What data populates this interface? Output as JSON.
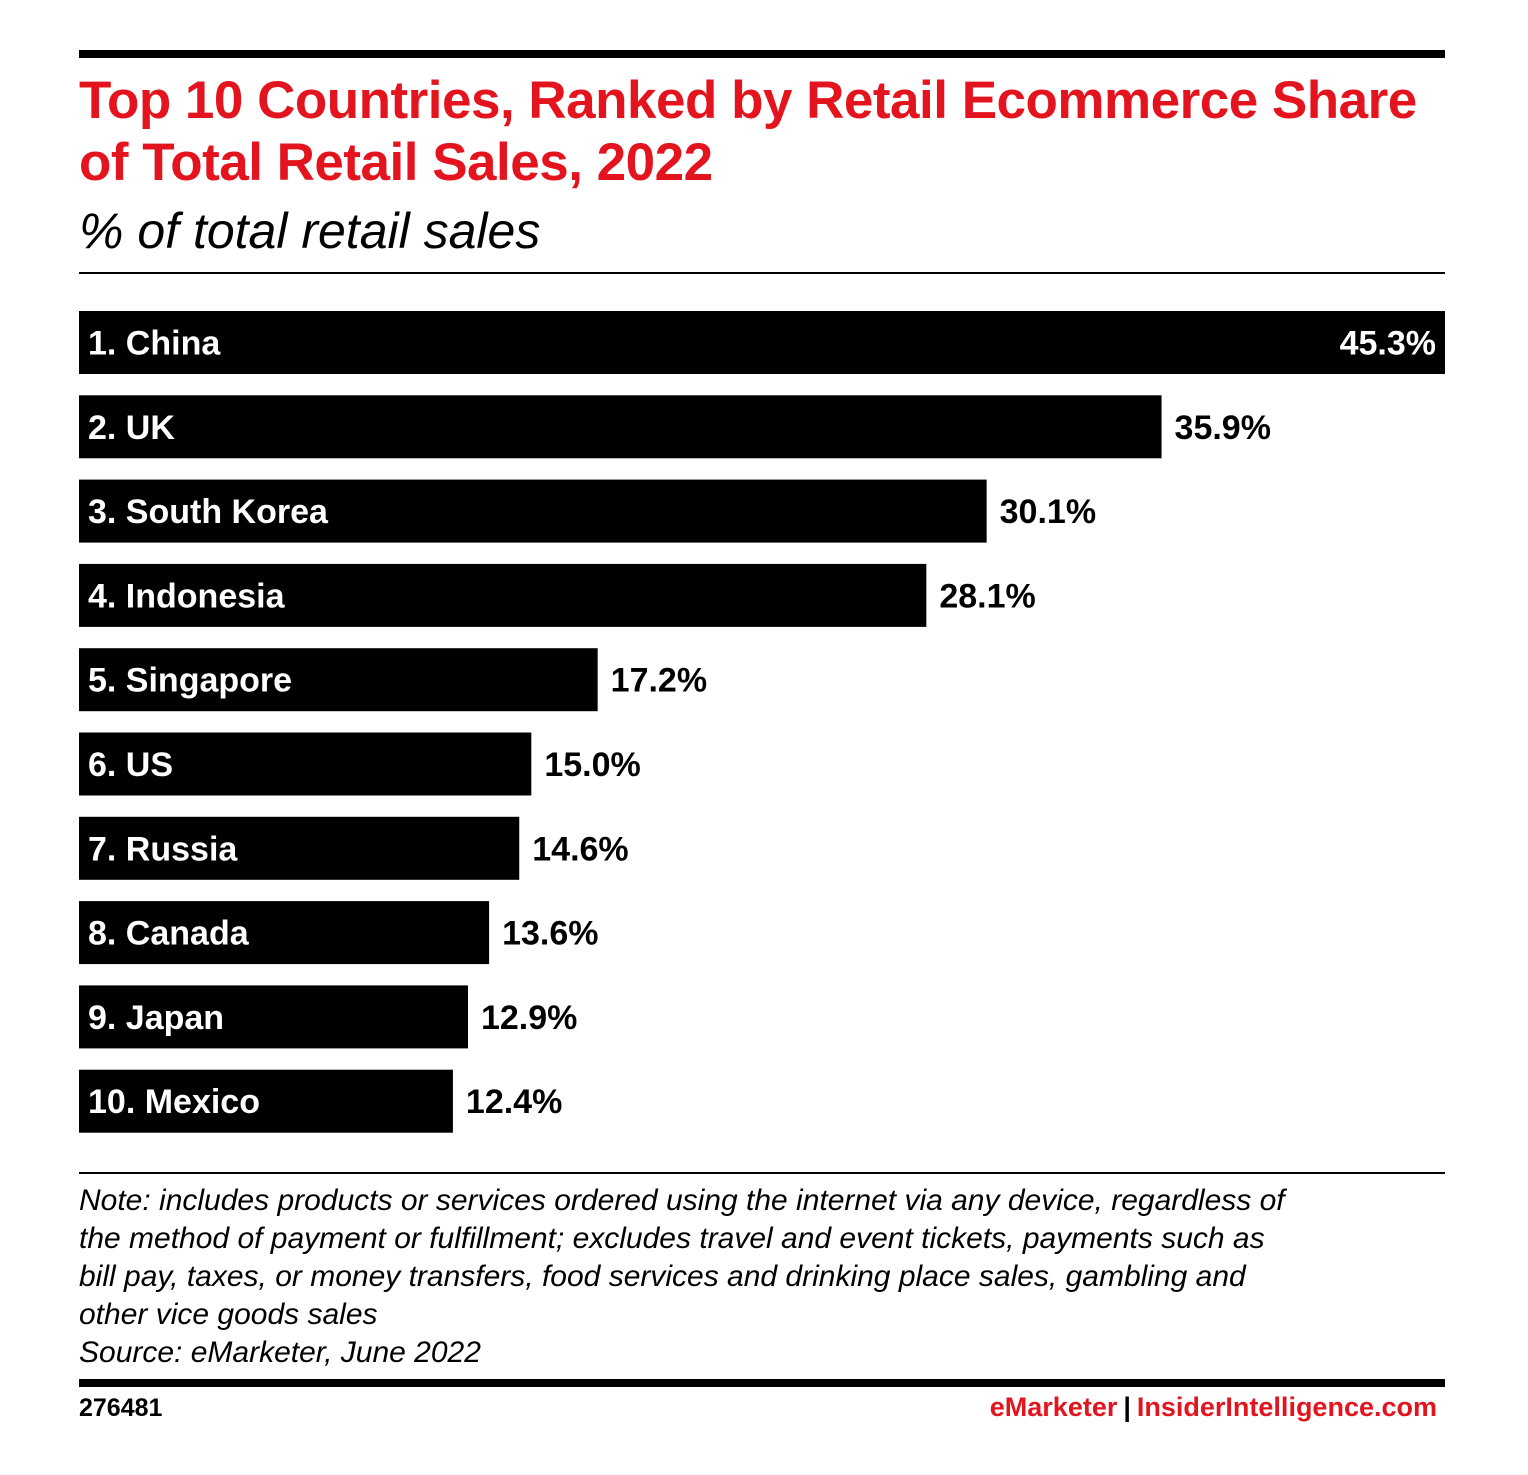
{
  "header": {
    "title": "Top 10 Countries, Ranked by Retail Ecommerce Share of Total Retail Sales, 2022",
    "subtitle": "% of total retail sales"
  },
  "chart_data": {
    "type": "bar",
    "orientation": "horizontal",
    "categories": [
      "1. China",
      "2. UK",
      "3. South Korea",
      "4. Indonesia",
      "5. Singapore",
      "6. US",
      "7. Russia",
      "8. Canada",
      "9. Japan",
      "10. Mexico"
    ],
    "values": [
      45.3,
      35.9,
      30.1,
      28.1,
      17.2,
      15.0,
      14.6,
      13.6,
      12.9,
      12.4
    ],
    "value_labels": [
      "45.3%",
      "35.9%",
      "30.1%",
      "28.1%",
      "17.2%",
      "15.0%",
      "14.6%",
      "13.6%",
      "12.9%",
      "12.4%"
    ],
    "title": "Top 10 Countries, Ranked by Retail Ecommerce Share of Total Retail Sales, 2022",
    "xlabel": "",
    "ylabel": "",
    "xlim": [
      0,
      45.3
    ],
    "grid": false,
    "bar_color": "#000000",
    "label_color_inside": "#ffffff",
    "label_color_outside": "#000000"
  },
  "note": {
    "lines": [
      "Note: includes products or services ordered using the internet via any device, regardless of",
      "the method of payment or fulfillment; excludes travel and event tickets, payments such as",
      "bill pay, taxes, or money transfers, food services and drinking place sales, gambling and",
      "other vice goods sales",
      "Source: eMarketer, June 2022"
    ]
  },
  "footer": {
    "chart_id": "276481",
    "brand": "eMarketer",
    "separator": "|",
    "site": "InsiderIntelligence.com"
  },
  "colors": {
    "accent": "#e4141e",
    "ink": "#000000"
  }
}
